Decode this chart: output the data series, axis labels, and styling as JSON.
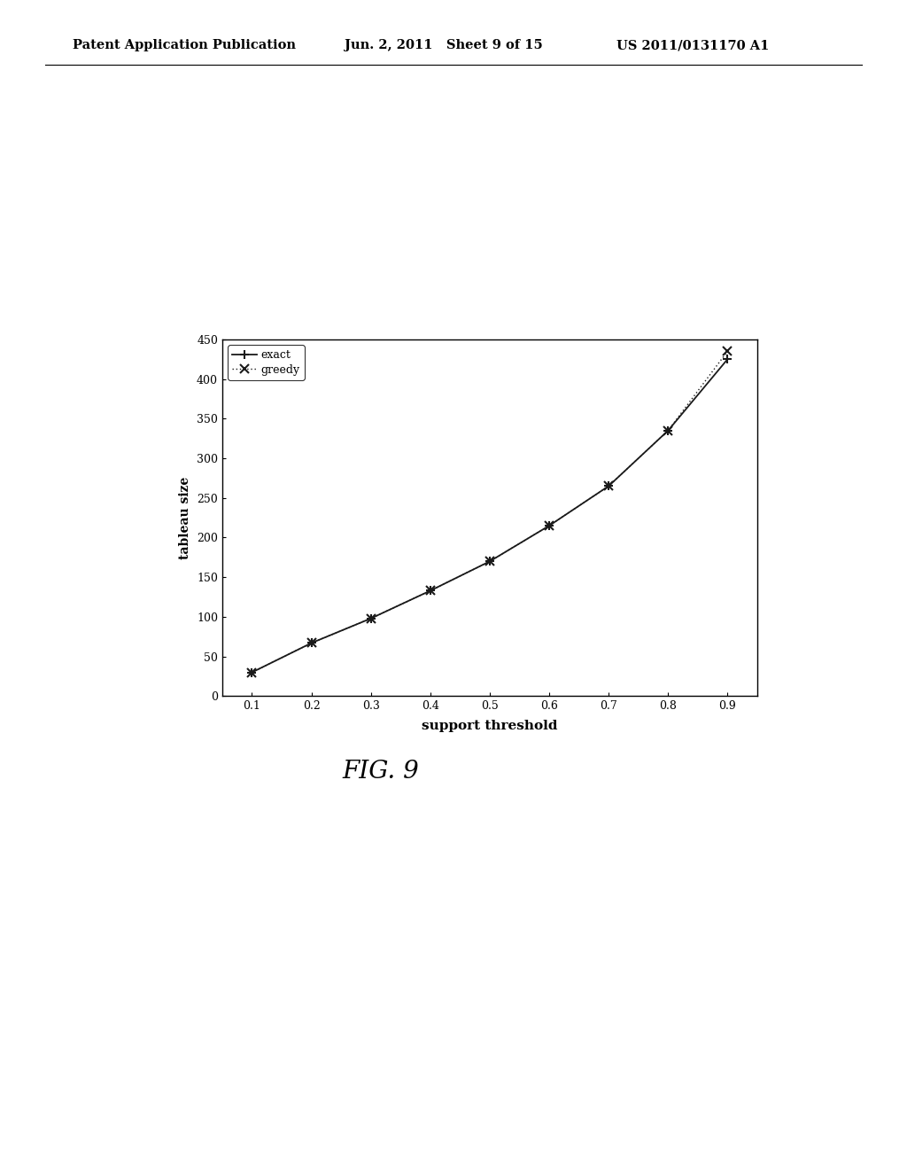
{
  "x": [
    0.1,
    0.2,
    0.3,
    0.4,
    0.5,
    0.6,
    0.7,
    0.8,
    0.9
  ],
  "exact_y": [
    30,
    67,
    98,
    133,
    170,
    215,
    265,
    335,
    425
  ],
  "greedy_y": [
    30,
    67,
    98,
    133,
    170,
    215,
    265,
    335,
    435
  ],
  "xlabel": "support threshold",
  "ylabel": "tableau size",
  "xlim": [
    0.05,
    0.95
  ],
  "ylim": [
    0,
    450
  ],
  "yticks": [
    0,
    50,
    100,
    150,
    200,
    250,
    300,
    350,
    400,
    450
  ],
  "xticks": [
    0.1,
    0.2,
    0.3,
    0.4,
    0.5,
    0.6,
    0.7,
    0.8,
    0.9
  ],
  "exact_label": "exact",
  "greedy_label": "greedy",
  "line_color": "#1a1a1a",
  "fig_caption": "FIG. 9",
  "header_left": "Patent Application Publication",
  "header_center": "Jun. 2, 2011   Sheet 9 of 15",
  "header_right": "US 2011/0131170 A1",
  "background_color": "#ffffff",
  "plot_bg_color": "#ffffff"
}
